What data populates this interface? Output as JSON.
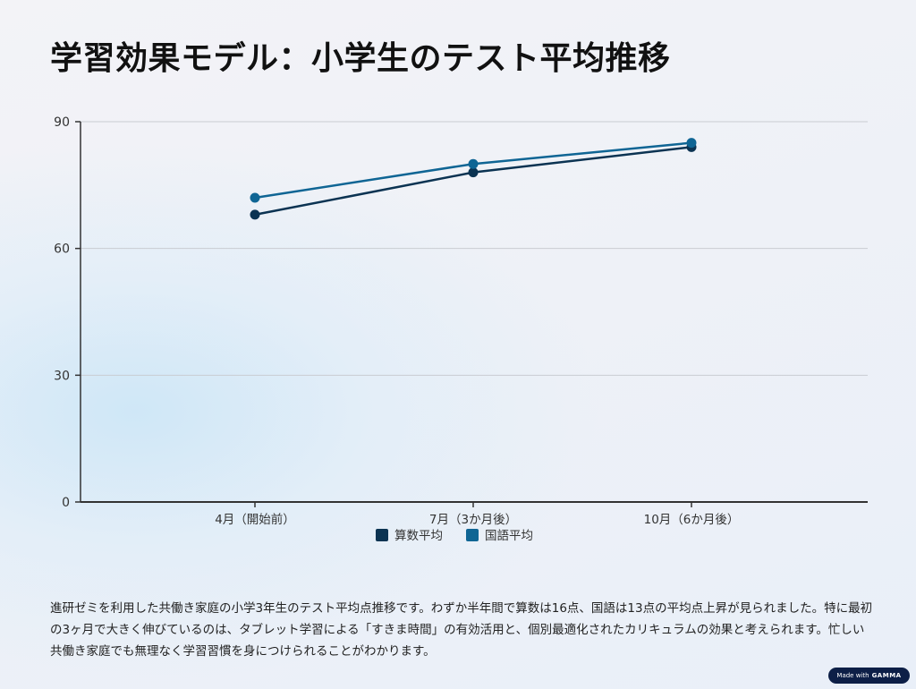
{
  "chart_data": {
    "type": "line",
    "title": "学習効果モデル：小学生のテスト平均推移",
    "categories": [
      "4月（開始前）",
      "7月（3か月後）",
      "10月（6か月後）"
    ],
    "series": [
      {
        "name": "算数平均",
        "values": [
          68,
          78,
          84
        ],
        "color": "#0b3352"
      },
      {
        "name": "国語平均",
        "values": [
          72,
          80,
          85
        ],
        "color": "#0f6594"
      }
    ],
    "ylim": [
      0,
      90
    ],
    "yticks": [
      0,
      30,
      60,
      90
    ],
    "grid": true,
    "legend": "bottom",
    "xlabel": "",
    "ylabel": ""
  },
  "description": "進研ゼミを利用した共働き家庭の小学3年生のテスト平均点推移です。わずか半年間で算数は16点、国語は13点の平均点上昇が見られました。特に最初の3ヶ月で大きく伸びているのは、タブレット学習による「すきま時間」の有効活用と、個別最適化されたカリキュラムの効果と考えられます。忙しい共働き家庭でも無理なく学習習慣を身につけられることがわかります。",
  "badge": {
    "prefix": "Made with",
    "brand": "GAMMA"
  }
}
